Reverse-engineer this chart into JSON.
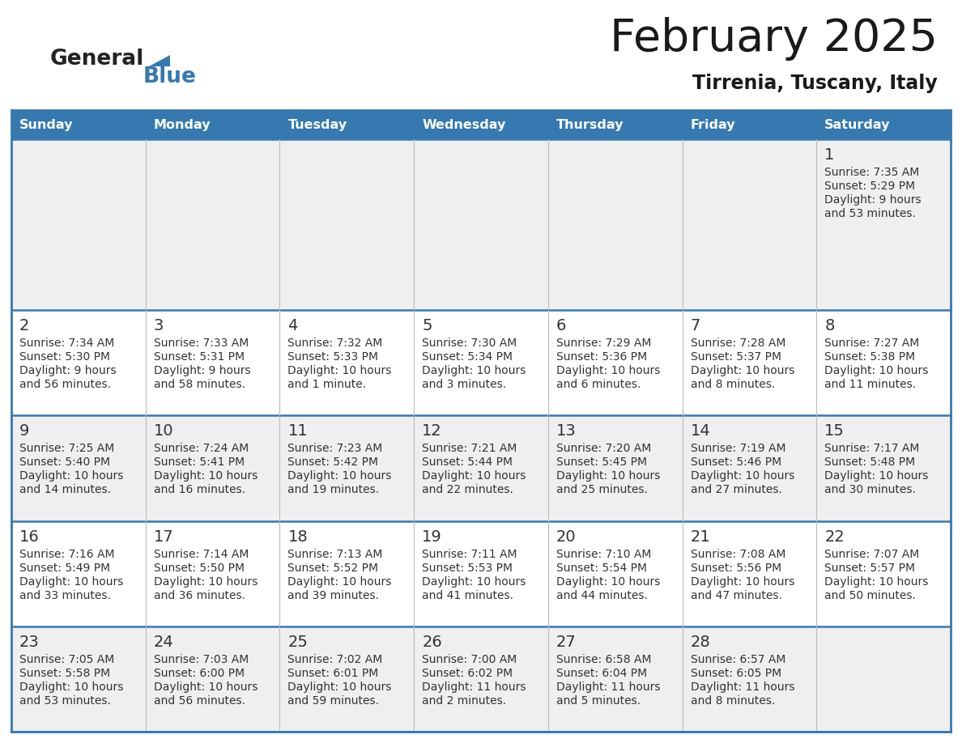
{
  "title": "February 2025",
  "subtitle": "Tirrenia, Tuscany, Italy",
  "header_bg": "#3679B0",
  "header_text": "#FFFFFF",
  "row_bg_odd": "#EFEFEF",
  "row_bg_even": "#FFFFFF",
  "border_color": "#3679B0",
  "text_color": "#333333",
  "day_num_color": "#333333",
  "days_of_week": [
    "Sunday",
    "Monday",
    "Tuesday",
    "Wednesday",
    "Thursday",
    "Friday",
    "Saturday"
  ],
  "logo_general_color": "#222222",
  "logo_blue_color": "#3679B0",
  "logo_triangle_color": "#3679B0",
  "calendar_data": [
    [
      null,
      null,
      null,
      null,
      null,
      null,
      {
        "day": "1",
        "sunrise": "7:35 AM",
        "sunset": "5:29 PM",
        "daylight": "9 hours and 53 minutes."
      }
    ],
    [
      {
        "day": "2",
        "sunrise": "7:34 AM",
        "sunset": "5:30 PM",
        "daylight": "9 hours and 56 minutes."
      },
      {
        "day": "3",
        "sunrise": "7:33 AM",
        "sunset": "5:31 PM",
        "daylight": "9 hours and 58 minutes."
      },
      {
        "day": "4",
        "sunrise": "7:32 AM",
        "sunset": "5:33 PM",
        "daylight": "10 hours and 1 minute."
      },
      {
        "day": "5",
        "sunrise": "7:30 AM",
        "sunset": "5:34 PM",
        "daylight": "10 hours and 3 minutes."
      },
      {
        "day": "6",
        "sunrise": "7:29 AM",
        "sunset": "5:36 PM",
        "daylight": "10 hours and 6 minutes."
      },
      {
        "day": "7",
        "sunrise": "7:28 AM",
        "sunset": "5:37 PM",
        "daylight": "10 hours and 8 minutes."
      },
      {
        "day": "8",
        "sunrise": "7:27 AM",
        "sunset": "5:38 PM",
        "daylight": "10 hours and 11 minutes."
      }
    ],
    [
      {
        "day": "9",
        "sunrise": "7:25 AM",
        "sunset": "5:40 PM",
        "daylight": "10 hours and 14 minutes."
      },
      {
        "day": "10",
        "sunrise": "7:24 AM",
        "sunset": "5:41 PM",
        "daylight": "10 hours and 16 minutes."
      },
      {
        "day": "11",
        "sunrise": "7:23 AM",
        "sunset": "5:42 PM",
        "daylight": "10 hours and 19 minutes."
      },
      {
        "day": "12",
        "sunrise": "7:21 AM",
        "sunset": "5:44 PM",
        "daylight": "10 hours and 22 minutes."
      },
      {
        "day": "13",
        "sunrise": "7:20 AM",
        "sunset": "5:45 PM",
        "daylight": "10 hours and 25 minutes."
      },
      {
        "day": "14",
        "sunrise": "7:19 AM",
        "sunset": "5:46 PM",
        "daylight": "10 hours and 27 minutes."
      },
      {
        "day": "15",
        "sunrise": "7:17 AM",
        "sunset": "5:48 PM",
        "daylight": "10 hours and 30 minutes."
      }
    ],
    [
      {
        "day": "16",
        "sunrise": "7:16 AM",
        "sunset": "5:49 PM",
        "daylight": "10 hours and 33 minutes."
      },
      {
        "day": "17",
        "sunrise": "7:14 AM",
        "sunset": "5:50 PM",
        "daylight": "10 hours and 36 minutes."
      },
      {
        "day": "18",
        "sunrise": "7:13 AM",
        "sunset": "5:52 PM",
        "daylight": "10 hours and 39 minutes."
      },
      {
        "day": "19",
        "sunrise": "7:11 AM",
        "sunset": "5:53 PM",
        "daylight": "10 hours and 41 minutes."
      },
      {
        "day": "20",
        "sunrise": "7:10 AM",
        "sunset": "5:54 PM",
        "daylight": "10 hours and 44 minutes."
      },
      {
        "day": "21",
        "sunrise": "7:08 AM",
        "sunset": "5:56 PM",
        "daylight": "10 hours and 47 minutes."
      },
      {
        "day": "22",
        "sunrise": "7:07 AM",
        "sunset": "5:57 PM",
        "daylight": "10 hours and 50 minutes."
      }
    ],
    [
      {
        "day": "23",
        "sunrise": "7:05 AM",
        "sunset": "5:58 PM",
        "daylight": "10 hours and 53 minutes."
      },
      {
        "day": "24",
        "sunrise": "7:03 AM",
        "sunset": "6:00 PM",
        "daylight": "10 hours and 56 minutes."
      },
      {
        "day": "25",
        "sunrise": "7:02 AM",
        "sunset": "6:01 PM",
        "daylight": "10 hours and 59 minutes."
      },
      {
        "day": "26",
        "sunrise": "7:00 AM",
        "sunset": "6:02 PM",
        "daylight": "11 hours and 2 minutes."
      },
      {
        "day": "27",
        "sunrise": "6:58 AM",
        "sunset": "6:04 PM",
        "daylight": "11 hours and 5 minutes."
      },
      {
        "day": "28",
        "sunrise": "6:57 AM",
        "sunset": "6:05 PM",
        "daylight": "11 hours and 8 minutes."
      },
      null
    ]
  ]
}
